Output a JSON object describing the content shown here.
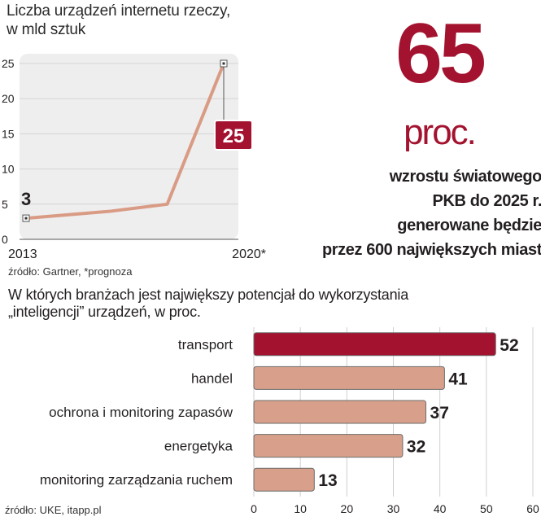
{
  "line_chart": {
    "title_lines": [
      "Liczba urządzeń internetu rzeczy,",
      "w mld sztuk"
    ],
    "source": "źródło: Gartner, *prognoza"
  },
  "stat": {
    "value": "65",
    "unit": "proc.",
    "lines": [
      "wzrostu światowego",
      "PKB do 2025 r.",
      "generowane będzie",
      "przez 600 największych miast"
    ]
  },
  "bar_chart": {
    "title_lines": [
      "W których branżach jest największy  potencjał do wykorzystania",
      "„inteligencji” urządzeń, w proc."
    ],
    "source": "źródło: UKE, itapp.pl"
  },
  "colors": {
    "accent": "#a3122f",
    "bar": "#d8a08b",
    "line": "#d99b84",
    "panel": "#eeeeee"
  },
  "chart_data": [
    {
      "type": "line",
      "title": "Liczba urządzeń internetu rzeczy, w mld sztuk",
      "x_labels": [
        "2013",
        "2020*"
      ],
      "points": [
        {
          "x": 2013,
          "y": 3
        },
        {
          "x": 2016,
          "y": 4
        },
        {
          "x": 2018,
          "y": 5
        },
        {
          "x": 2020,
          "y": 25
        }
      ],
      "data_labels": [
        {
          "x": 2013,
          "label": "3"
        },
        {
          "x": 2020,
          "label": "25"
        }
      ],
      "yticks": [
        "0",
        "5",
        "10",
        "15",
        "20",
        "25"
      ],
      "ylim": [
        0,
        25
      ],
      "grid": true
    },
    {
      "type": "bar",
      "orientation": "horizontal",
      "categories": [
        "transport",
        "handel",
        "ochrona i monitoring zapasów",
        "energetyka",
        "monitoring zarządzania ruchem"
      ],
      "values": [
        52,
        41,
        37,
        32,
        13
      ],
      "labels": [
        "52",
        "41",
        "37",
        "32",
        "13"
      ],
      "xticks": [
        "0",
        "10",
        "20",
        "30",
        "40",
        "50",
        "60"
      ],
      "xlim": [
        0,
        60
      ],
      "grid": true
    }
  ]
}
